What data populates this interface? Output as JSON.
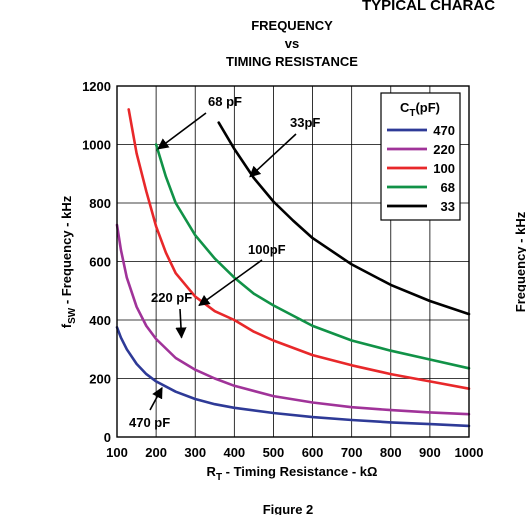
{
  "header_text": "TYPICAL CHARAC",
  "caption": "Figure 2",
  "right_edge_text": "Frequency - kHz",
  "chart_data": {
    "type": "line",
    "title_lines": [
      "FREQUENCY",
      "vs",
      "TIMING RESISTANCE"
    ],
    "xlabel": {
      "main": "R",
      "sub": "T",
      "rest": " - Timing Resistance - kΩ"
    },
    "ylabel": {
      "main": "f",
      "sub": "SW",
      "rest": " - Frequency - kHz"
    },
    "xlim": [
      100,
      1000
    ],
    "ylim": [
      0,
      1200
    ],
    "xticks": [
      100,
      200,
      300,
      400,
      500,
      600,
      700,
      800,
      900,
      1000
    ],
    "yticks": [
      0,
      200,
      400,
      600,
      800,
      1000,
      1200
    ],
    "grid": true,
    "legend": {
      "title_main": "C",
      "title_sub": "T",
      "title_rest": "(pF)",
      "placement": "top-right"
    },
    "series": [
      {
        "name": "470",
        "color": "#2e3a97",
        "x": [
          100,
          110,
          125,
          150,
          175,
          200,
          250,
          300,
          350,
          400,
          500,
          600,
          700,
          800,
          900,
          1000
        ],
        "y": [
          375,
          340,
          300,
          250,
          215,
          190,
          155,
          130,
          112,
          100,
          82,
          68,
          58,
          50,
          44,
          38
        ]
      },
      {
        "name": "220",
        "color": "#a03399",
        "x": [
          100,
          110,
          125,
          150,
          175,
          200,
          250,
          300,
          350,
          400,
          500,
          600,
          700,
          800,
          900,
          1000
        ],
        "y": [
          725,
          640,
          545,
          445,
          380,
          335,
          270,
          230,
          200,
          175,
          140,
          118,
          102,
          92,
          84,
          78
        ]
      },
      {
        "name": "100",
        "color": "#e8282a",
        "x": [
          130,
          150,
          175,
          200,
          225,
          250,
          300,
          350,
          400,
          450,
          500,
          600,
          700,
          800,
          900,
          1000
        ],
        "y": [
          1120,
          970,
          840,
          720,
          630,
          560,
          480,
          430,
          400,
          360,
          330,
          280,
          245,
          215,
          190,
          165
        ]
      },
      {
        "name": "68",
        "color": "#119247",
        "x": [
          200,
          225,
          250,
          300,
          350,
          400,
          450,
          500,
          600,
          700,
          800,
          900,
          1000
        ],
        "y": [
          1000,
          890,
          800,
          690,
          610,
          545,
          490,
          450,
          380,
          330,
          295,
          265,
          235
        ]
      },
      {
        "name": "33",
        "color": "#000000",
        "x": [
          360,
          400,
          450,
          500,
          550,
          600,
          700,
          800,
          900,
          1000
        ],
        "y": [
          1075,
          985,
          885,
          805,
          740,
          680,
          590,
          520,
          465,
          420
        ]
      }
    ],
    "annotations": [
      {
        "text": "68 pF",
        "series": "68",
        "x": 205,
        "y": 985
      },
      {
        "text": "33pF",
        "series": "33",
        "x": 440,
        "y": 890
      },
      {
        "text": "100pF",
        "series": "100",
        "x": 310,
        "y": 450
      },
      {
        "text": "220 pF",
        "series": "220",
        "x": 265,
        "y": 340
      },
      {
        "text": "470 pF",
        "series": "470",
        "x": 215,
        "y": 168
      }
    ]
  }
}
